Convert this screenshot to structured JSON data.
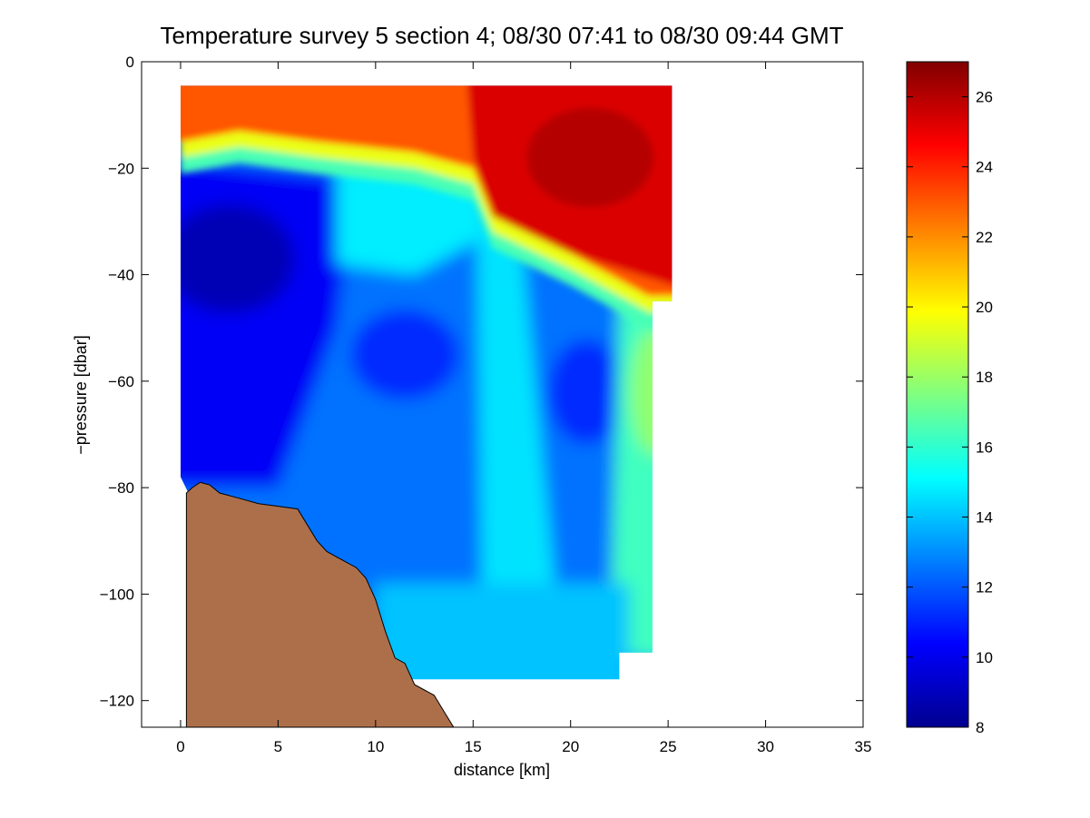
{
  "chart_data": {
    "type": "heatmap",
    "title": "Temperature survey 5 section 4; 08/30 07:41 to 08/30 09:44 GMT",
    "xlabel": "distance [km]",
    "ylabel": "−pressure [dbar]",
    "xlim": [
      -2,
      35
    ],
    "ylim": [
      -125,
      0
    ],
    "x_ticks": [
      "0",
      "5",
      "10",
      "15",
      "20",
      "25",
      "30",
      "35"
    ],
    "y_ticks": [
      "0",
      "−20",
      "−40",
      "−60",
      "−80",
      "−100",
      "−120"
    ],
    "colorbar": {
      "colormap": "jet",
      "range": [
        8,
        27
      ],
      "ticks": [
        "8",
        "10",
        "12",
        "14",
        "16",
        "18",
        "20",
        "22",
        "24",
        "26"
      ]
    },
    "grid": false,
    "data_region": {
      "outline": [
        [
          0,
          -4.5
        ],
        [
          25.2,
          -4.5
        ],
        [
          25.2,
          -45
        ],
        [
          24.2,
          -45
        ],
        [
          24.2,
          -111
        ],
        [
          22.5,
          -111
        ],
        [
          22.5,
          -116
        ],
        [
          11,
          -116
        ],
        [
          11,
          -113
        ],
        [
          0.4,
          -81
        ],
        [
          0,
          -78
        ],
        [
          0,
          -4.5
        ]
      ]
    },
    "temperature_field": {
      "mixed_layer": [
        {
          "x": 0,
          "bottom_depth": -15,
          "temp": 23.0
        },
        {
          "x": 3,
          "bottom_depth": -13,
          "temp": 23.2
        },
        {
          "x": 7,
          "bottom_depth": -15,
          "temp": 23.5
        },
        {
          "x": 12,
          "bottom_depth": -17,
          "temp": 23.6
        },
        {
          "x": 15,
          "bottom_depth": -20,
          "temp": 24.0
        },
        {
          "x": 16,
          "bottom_depth": -29,
          "temp": 25.3
        },
        {
          "x": 20,
          "bottom_depth": -36,
          "temp": 25.3
        },
        {
          "x": 24,
          "bottom_depth": -44,
          "temp": 24.8
        }
      ],
      "features": [
        {
          "name": "cold core",
          "center": [
            2,
            -35
          ],
          "temp": 9.0
        },
        {
          "name": "cold pool",
          "center": [
            11,
            -52
          ],
          "temp": 11.0
        },
        {
          "name": "warm band",
          "center": [
            17,
            -70
          ],
          "temp": 14.5
        },
        {
          "name": "eastern cold lens",
          "center": [
            20.5,
            -58
          ],
          "temp": 11.0
        },
        {
          "name": "eastern boundary warm water",
          "center": [
            23.5,
            -65
          ],
          "temp": 17.5
        }
      ]
    },
    "bathymetry": {
      "color": "#ad6f4a",
      "profile": [
        [
          0.3,
          -81
        ],
        [
          0.6,
          -80
        ],
        [
          1,
          -79
        ],
        [
          1.5,
          -79.5
        ],
        [
          2,
          -81
        ],
        [
          3,
          -82
        ],
        [
          4,
          -83
        ],
        [
          5,
          -83.5
        ],
        [
          6,
          -84
        ],
        [
          7,
          -90
        ],
        [
          7.5,
          -92
        ],
        [
          8,
          -93
        ],
        [
          9,
          -95
        ],
        [
          9.5,
          -97
        ],
        [
          10,
          -101
        ],
        [
          10.5,
          -107
        ],
        [
          11,
          -112
        ],
        [
          11.5,
          -113
        ],
        [
          12,
          -117
        ],
        [
          12.5,
          -118
        ],
        [
          13,
          -119
        ],
        [
          13.5,
          -122
        ],
        [
          14,
          -125
        ]
      ]
    }
  }
}
